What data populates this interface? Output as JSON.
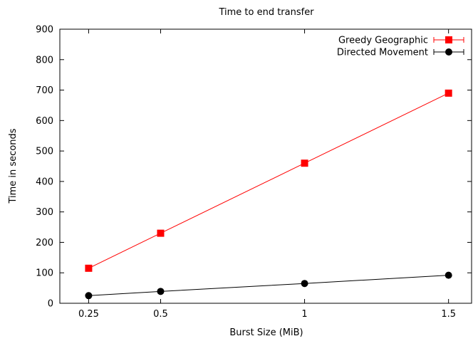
{
  "chart_data": {
    "type": "line",
    "title": "Time to end transfer",
    "xlabel": "Burst Size (MiB)",
    "ylabel": "Time in seconds",
    "xlim": [
      0.15,
      1.58
    ],
    "ylim": [
      0,
      900
    ],
    "x_ticks": [
      0.25,
      0.5,
      1,
      1.5
    ],
    "x_tick_labels": [
      "0.25",
      "0.5",
      "1",
      "1.5"
    ],
    "y_ticks": [
      0,
      100,
      200,
      300,
      400,
      500,
      600,
      700,
      800,
      900
    ],
    "y_tick_labels": [
      "0",
      "100",
      "200",
      "300",
      "400",
      "500",
      "600",
      "700",
      "800",
      "900"
    ],
    "grid": false,
    "legend_position": "top-right",
    "x": [
      0.25,
      0.5,
      1,
      1.5
    ],
    "series": [
      {
        "name": "Greedy Geographic",
        "values": [
          115,
          230,
          460,
          690
        ],
        "color": "#ff0000",
        "marker": "square"
      },
      {
        "name": "Directed Movement",
        "values": [
          25,
          39,
          65,
          92
        ],
        "color": "#000000",
        "marker": "circle"
      }
    ]
  }
}
